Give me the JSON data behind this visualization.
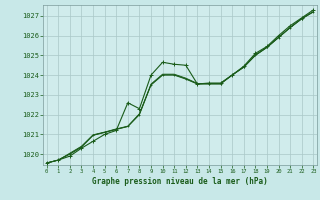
{
  "xlabel": "Graphe pression niveau de la mer (hPa)",
  "x_ticks": [
    0,
    1,
    2,
    3,
    4,
    5,
    6,
    7,
    8,
    9,
    10,
    11,
    12,
    13,
    14,
    15,
    16,
    17,
    18,
    19,
    20,
    21,
    22,
    23
  ],
  "y_ticks": [
    1020,
    1021,
    1022,
    1023,
    1024,
    1025,
    1026,
    1027
  ],
  "xlim": [
    -0.3,
    23.3
  ],
  "ylim": [
    1019.45,
    1027.55
  ],
  "background_color": "#c8e8e8",
  "plot_bg_color": "#d0ecec",
  "grid_color": "#aac8c8",
  "line_color": "#1a5c1a",
  "tick_color": "#1a5c1a",
  "label_color": "#1a5c1a",
  "series": [
    [
      1019.55,
      1019.7,
      1019.9,
      1020.3,
      1020.65,
      1021.0,
      1021.2,
      1022.6,
      1022.3,
      1024.0,
      1024.65,
      1024.55,
      1024.5,
      1023.55,
      1023.6,
      1023.6,
      1024.0,
      1024.45,
      1025.1,
      1025.45,
      1026.0,
      1026.5,
      1026.9,
      1027.3
    ],
    [
      1019.55,
      1019.7,
      1020.0,
      1020.35,
      1020.95,
      1021.1,
      1021.25,
      1021.4,
      1022.0,
      1023.5,
      1024.0,
      1024.0,
      1023.8,
      1023.55,
      1023.55,
      1023.55,
      1024.0,
      1024.4,
      1025.0,
      1025.4,
      1025.9,
      1026.4,
      1026.85,
      1027.2
    ],
    [
      1019.55,
      1019.7,
      1020.05,
      1020.4,
      1020.98,
      1021.12,
      1021.28,
      1021.42,
      1022.05,
      1023.55,
      1024.05,
      1024.05,
      1023.85,
      1023.58,
      1023.58,
      1023.58,
      1024.02,
      1024.42,
      1025.02,
      1025.42,
      1025.92,
      1026.42,
      1026.87,
      1027.22
    ],
    [
      1019.55,
      1019.7,
      1020.02,
      1020.38,
      1020.96,
      1021.1,
      1021.26,
      1021.4,
      1022.02,
      1023.52,
      1024.02,
      1024.02,
      1023.82,
      1023.56,
      1023.56,
      1023.56,
      1024.0,
      1024.4,
      1025.0,
      1025.4,
      1025.9,
      1026.4,
      1026.85,
      1027.2
    ]
  ]
}
